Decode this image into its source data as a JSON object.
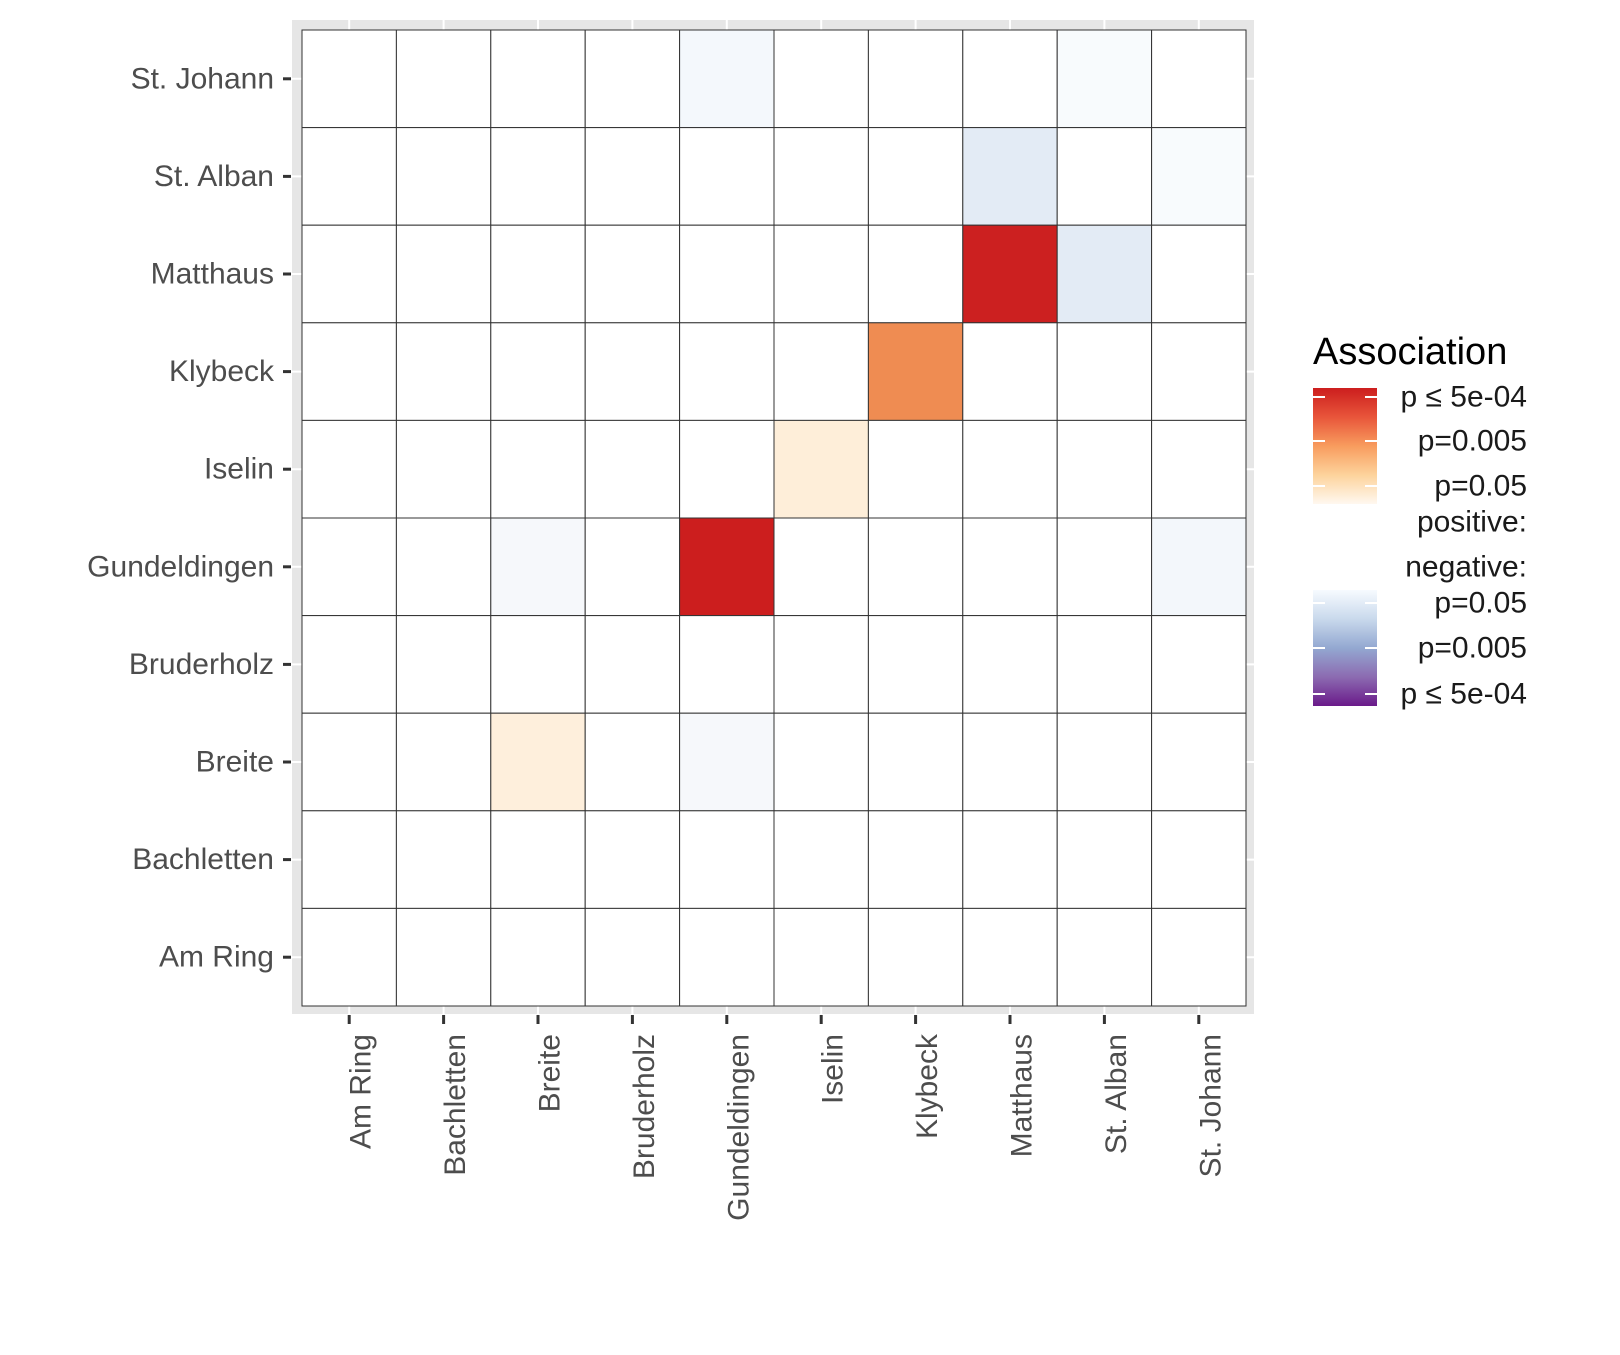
{
  "chart_data": {
    "type": "heatmap",
    "title": "",
    "xlabel": "",
    "ylabel": "",
    "x_categories": [
      "Am Ring",
      "Bachletten",
      "Breite",
      "Bruderholz",
      "Gundeldingen",
      "Iselin",
      "Klybeck",
      "Matthaus",
      "St. Alban",
      "St. Johann"
    ],
    "y_categories": [
      "St. Johann",
      "St. Alban",
      "Matthaus",
      "Klybeck",
      "Iselin",
      "Gundeldingen",
      "Bruderholz",
      "Breite",
      "Bachletten",
      "Am Ring"
    ],
    "cells": [
      {
        "x": "Gundeldingen",
        "y": "St. Johann",
        "color": "#f4f8fc",
        "level": "negative, p>0.05"
      },
      {
        "x": "St. Alban",
        "y": "St. Johann",
        "color": "#f8fbfd",
        "level": "negative, p>0.05"
      },
      {
        "x": "Matthaus",
        "y": "St. Alban",
        "color": "#e3ebf5",
        "level": "negative, p~0.05"
      },
      {
        "x": "St. Johann",
        "y": "St. Alban",
        "color": "#f8fbfd",
        "level": "negative, p>0.05"
      },
      {
        "x": "Matthaus",
        "y": "Matthaus",
        "color": "#cc2020",
        "level": "positive, p<=5e-04"
      },
      {
        "x": "St. Alban",
        "y": "Matthaus",
        "color": "#e3ebf5",
        "level": "negative, p~0.05"
      },
      {
        "x": "Klybeck",
        "y": "Klybeck",
        "color": "#ef8c52",
        "level": "positive, p~0.005"
      },
      {
        "x": "Iselin",
        "y": "Iselin",
        "color": "#feeed9",
        "level": "positive, p~0.05"
      },
      {
        "x": "Breite",
        "y": "Gundeldingen",
        "color": "#f6f8fb",
        "level": "negative, p>0.05"
      },
      {
        "x": "Gundeldingen",
        "y": "Gundeldingen",
        "color": "#cc1e1e",
        "level": "positive, p<=5e-04"
      },
      {
        "x": "St. Johann",
        "y": "Gundeldingen",
        "color": "#f3f7fb",
        "level": "negative, p>0.05"
      },
      {
        "x": "Breite",
        "y": "Breite",
        "color": "#feefdc",
        "level": "positive, p~0.05"
      },
      {
        "x": "Gundeldingen",
        "y": "Breite",
        "color": "#f6f8fb",
        "level": "negative, p>0.05"
      }
    ],
    "default_color": "#ffffff",
    "legend": {
      "title": "Association",
      "positive_colors": [
        "#cc1e1e",
        "#e8553a",
        "#f89c5e",
        "#fdd39c",
        "#fff8f0"
      ],
      "negative_colors": [
        "#f7fbff",
        "#c9d9ec",
        "#93a8d1",
        "#8c6bb1",
        "#6a1a8a"
      ],
      "labels": [
        "p ≤ 5e-04",
        "p=0.005",
        "p=0.05",
        "positive:",
        "negative:",
        "p=0.05",
        "p=0.005",
        "p ≤ 5e-04"
      ],
      "placement": "right"
    },
    "panel_background": "#e6e6e6",
    "grid": true
  }
}
